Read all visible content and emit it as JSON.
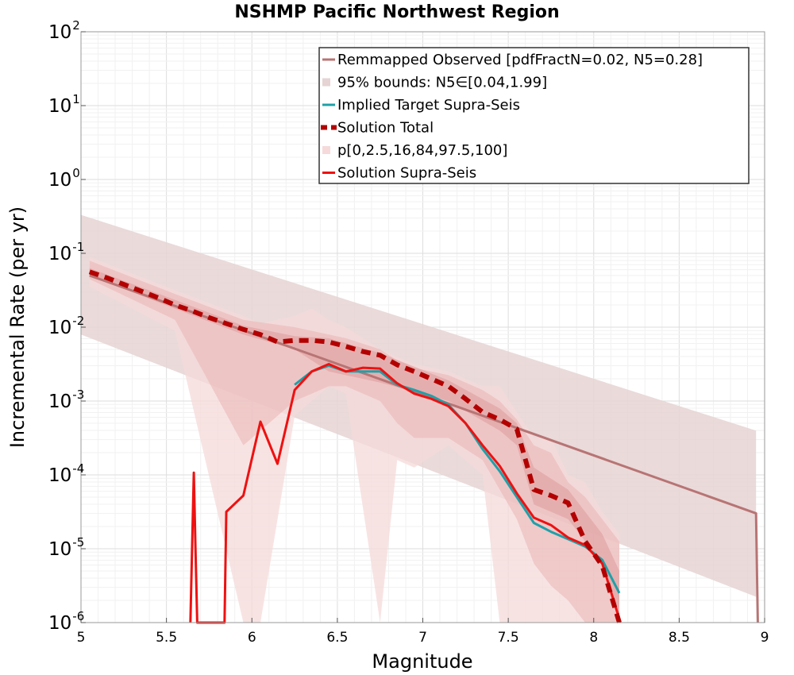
{
  "chart_data": {
    "type": "line",
    "title": "NSHMP Pacific Northwest Region",
    "xlabel": "Magnitude",
    "ylabel": "Incremental Rate (per yr)",
    "xlim": [
      5,
      9
    ],
    "ylim_log10": [
      -6,
      2
    ],
    "y_scale": "log",
    "grid": true,
    "legend_position": "top-right",
    "x_ticks": [
      "5",
      "5.5",
      "6",
      "6.5",
      "7",
      "7.5",
      "8",
      "8.5",
      "9"
    ],
    "y_ticks": [
      {
        "base": "10",
        "exp": "2"
      },
      {
        "base": "10",
        "exp": "1"
      },
      {
        "base": "10",
        "exp": "0"
      },
      {
        "base": "10",
        "exp": "-1"
      },
      {
        "base": "10",
        "exp": "-2"
      },
      {
        "base": "10",
        "exp": "-3"
      },
      {
        "base": "10",
        "exp": "-4"
      },
      {
        "base": "10",
        "exp": "-5"
      },
      {
        "base": "10",
        "exp": "-6"
      }
    ],
    "colors": {
      "observed": "#b87474",
      "bounds95": "#e6d3d3",
      "target": "#20a0a8",
      "total": "#b30000",
      "percentile_outer": "#f6dada",
      "percentile_mid": "#eab5b5",
      "percentile_inner": "#de9a9a",
      "supra": "#ee1111"
    },
    "legend": [
      {
        "key": "observed",
        "label": "Remmapped Observed [pdfFractN=0.02, N5=0.28]",
        "style": "line"
      },
      {
        "key": "bounds95",
        "label": "95% bounds: N5∈[0.04,1.99]",
        "style": "band"
      },
      {
        "key": "target",
        "label": "Implied Target Supra-Seis",
        "style": "line"
      },
      {
        "key": "total",
        "label": "Solution Total",
        "style": "dashed"
      },
      {
        "key": "percentile",
        "label": "p[0,2.5,16,84,97.5,100]",
        "style": "band"
      },
      {
        "key": "supra",
        "label": "Solution Supra-Seis",
        "style": "line"
      }
    ],
    "series": {
      "observed": {
        "x": [
          5.05,
          8.95,
          8.96
        ],
        "log10_y": [
          -1.3,
          -4.52,
          -6.0
        ]
      },
      "bounds95": {
        "x": [
          5.0,
          8.95
        ],
        "upper_log10": [
          -0.48,
          -3.4
        ],
        "lower_log10": [
          -2.1,
          -5.65
        ]
      },
      "target": {
        "x": [
          6.25,
          6.35,
          6.45,
          6.55,
          6.65,
          6.75,
          6.85,
          6.95,
          7.05,
          7.15,
          7.25,
          7.35,
          7.45,
          7.55,
          7.65,
          7.75,
          7.85,
          7.95,
          8.05,
          8.15
        ],
        "log10_y": [
          -2.78,
          -2.6,
          -2.52,
          -2.6,
          -2.6,
          -2.6,
          -2.78,
          -2.85,
          -2.93,
          -3.05,
          -3.3,
          -3.65,
          -3.95,
          -4.3,
          -4.65,
          -4.77,
          -4.87,
          -4.97,
          -5.15,
          -5.6
        ]
      },
      "supra": {
        "x": [
          5.64,
          5.65,
          5.66,
          5.67,
          5.68,
          5.84,
          5.85,
          5.95,
          6.05,
          6.15,
          6.25,
          6.35,
          6.45,
          6.55,
          6.65,
          6.75,
          6.85,
          6.95,
          7.05,
          7.15,
          7.25,
          7.35,
          7.45,
          7.55,
          7.65,
          7.75,
          7.85,
          7.95,
          8.05,
          8.15
        ],
        "log10_y": [
          -6.0,
          -5.0,
          -3.97,
          -5.0,
          -6.0,
          -6.0,
          -4.5,
          -4.28,
          -3.28,
          -3.85,
          -2.85,
          -2.6,
          -2.5,
          -2.6,
          -2.55,
          -2.56,
          -2.76,
          -2.9,
          -2.97,
          -3.07,
          -3.3,
          -3.6,
          -3.88,
          -4.25,
          -4.58,
          -4.68,
          -4.85,
          -4.95,
          -5.2,
          -5.95
        ]
      },
      "total": {
        "x": [
          5.05,
          5.15,
          5.25,
          5.35,
          5.45,
          5.55,
          5.65,
          5.75,
          5.85,
          5.95,
          6.05,
          6.15,
          6.25,
          6.35,
          6.45,
          6.55,
          6.65,
          6.75,
          6.85,
          6.95,
          7.05,
          7.15,
          7.25,
          7.35,
          7.45,
          7.55,
          7.65,
          7.75,
          7.85,
          7.95,
          8.05,
          8.15
        ],
        "log10_y": [
          -1.25,
          -1.33,
          -1.42,
          -1.51,
          -1.6,
          -1.7,
          -1.78,
          -1.87,
          -1.95,
          -2.03,
          -2.1,
          -2.2,
          -2.18,
          -2.18,
          -2.2,
          -2.26,
          -2.33,
          -2.38,
          -2.51,
          -2.6,
          -2.7,
          -2.8,
          -2.97,
          -3.15,
          -3.25,
          -3.38,
          -4.2,
          -4.28,
          -4.38,
          -4.9,
          -5.23,
          -6.0
        ]
      },
      "percentile_outer": {
        "x": [
          5.05,
          5.55,
          5.95,
          6.05,
          6.25,
          6.35,
          6.45,
          6.55,
          6.75,
          6.85,
          6.95,
          7.15,
          7.35,
          7.45,
          7.55,
          7.65,
          7.75,
          7.85,
          7.95,
          8.05,
          8.15
        ],
        "upper_log10": [
          -1.05,
          -1.5,
          -1.85,
          -1.95,
          -1.85,
          -1.75,
          -1.9,
          -2.0,
          -2.3,
          -2.4,
          -2.5,
          -2.6,
          -2.8,
          -2.8,
          -3.15,
          -3.5,
          -3.5,
          -4.0,
          -4.1,
          -4.5,
          -4.8
        ],
        "lower_log10": [
          -1.45,
          -2.05,
          -6.0,
          -6.0,
          -3.2,
          -3.0,
          -2.8,
          -2.9,
          -6.0,
          -3.8,
          -3.9,
          -3.6,
          -4.0,
          -6.0,
          -6.0,
          -6.0,
          -6.0,
          -6.0,
          -6.0,
          -6.0,
          -6.0
        ]
      },
      "percentile_mid": {
        "x": [
          5.05,
          5.55,
          5.95,
          6.25,
          6.35,
          6.45,
          6.55,
          6.75,
          6.85,
          6.95,
          7.15,
          7.35,
          7.45,
          7.55,
          7.65,
          7.75,
          7.85,
          7.95,
          8.05,
          8.15
        ],
        "upper_log10": [
          -1.1,
          -1.55,
          -1.9,
          -2.0,
          -2.05,
          -2.1,
          -2.15,
          -2.3,
          -2.45,
          -2.55,
          -2.65,
          -2.85,
          -3.0,
          -3.25,
          -3.6,
          -3.7,
          -4.1,
          -4.3,
          -4.6,
          -4.9
        ],
        "lower_log10": [
          -1.35,
          -1.9,
          -3.6,
          -3.0,
          -2.9,
          -2.8,
          -2.8,
          -3.0,
          -3.3,
          -3.5,
          -3.5,
          -3.8,
          -4.2,
          -4.6,
          -5.2,
          -5.5,
          -5.7,
          -6.0,
          -6.0,
          -6.0
        ]
      },
      "percentile_inner": {
        "x": [
          5.05,
          5.55,
          5.95,
          6.25,
          6.45,
          6.75,
          7.15,
          7.45,
          7.55,
          7.65,
          7.85,
          8.05,
          8.15
        ],
        "upper_log10": [
          -1.2,
          -1.63,
          -1.98,
          -2.12,
          -2.15,
          -2.35,
          -2.72,
          -3.1,
          -3.3,
          -3.9,
          -4.2,
          -4.8,
          -5.3
        ],
        "lower_log10": [
          -1.3,
          -1.75,
          -2.1,
          -2.3,
          -2.6,
          -2.75,
          -3.0,
          -3.4,
          -3.6,
          -4.4,
          -4.6,
          -5.2,
          -5.9
        ]
      }
    }
  }
}
